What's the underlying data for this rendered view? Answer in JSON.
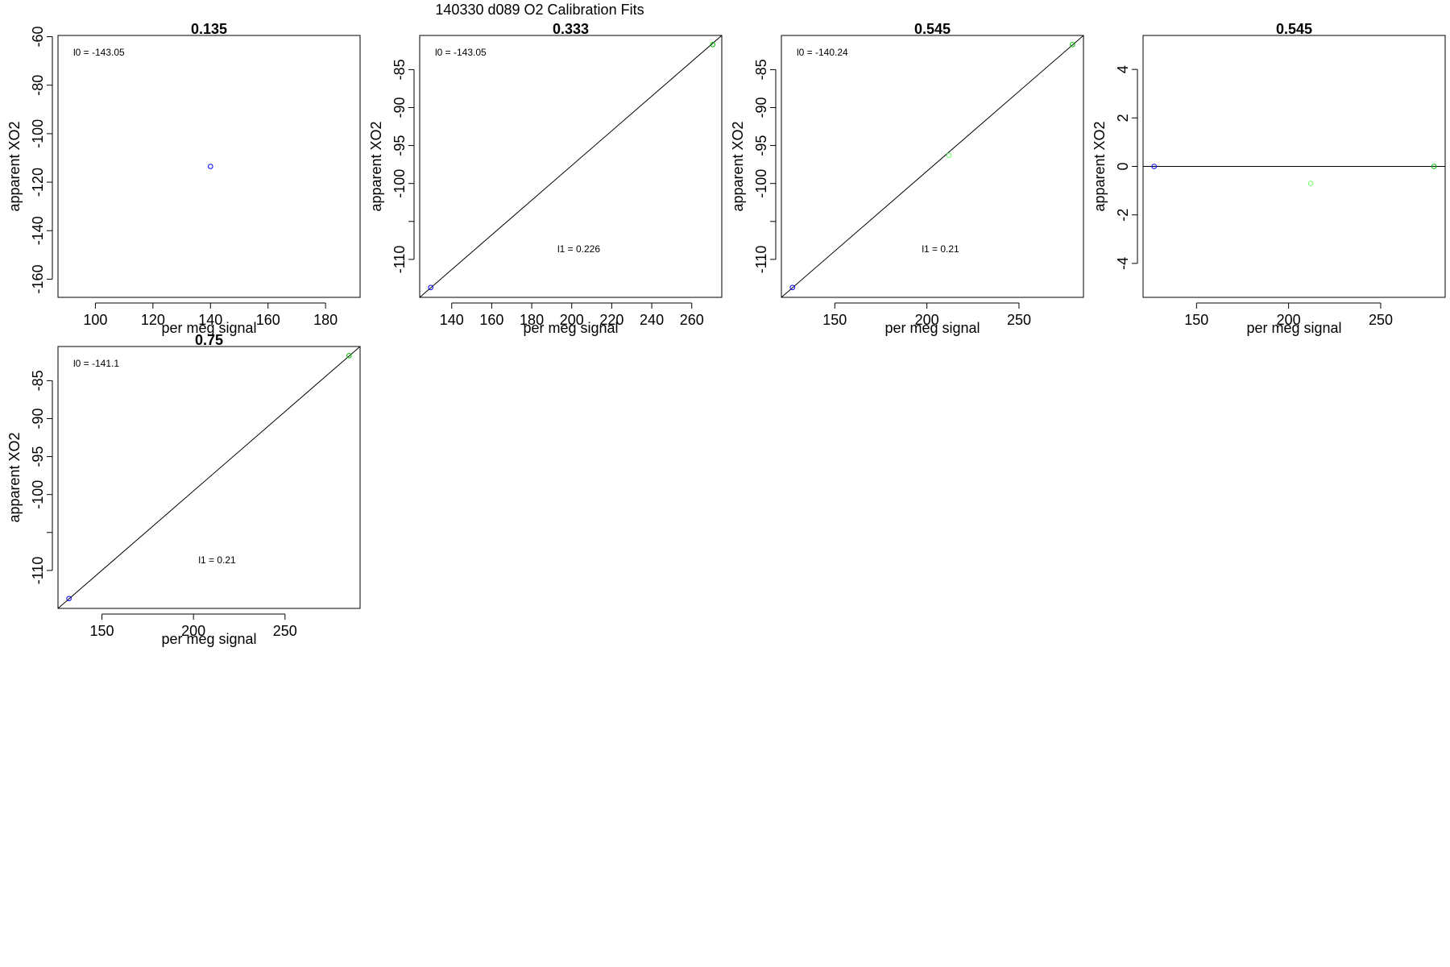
{
  "figure": {
    "title": "140330   d089   O2 Calibration Fits"
  },
  "colors": {
    "blue": "#0000ff",
    "green": "#00c000",
    "lightgreen": "#66ff66",
    "dark": "#000000"
  },
  "chart_data": [
    {
      "type": "scatter",
      "title": "0.135",
      "xlabel": "per meg signal",
      "ylabel": "apparent XO2",
      "xlim": [
        87,
        192
      ],
      "ylim": [
        -167.5,
        -59.5
      ],
      "xticks": [
        "100",
        "120",
        "140",
        "160",
        "180"
      ],
      "yticks": [
        "-60",
        "-80",
        "-100",
        "-120",
        "-140",
        "-160"
      ],
      "points": [
        {
          "x": 140,
          "y": -113.5,
          "color": "blue"
        }
      ],
      "fit_line": null,
      "annotations": {
        "l0": "l0 =  -143.05",
        "l1": ""
      }
    },
    {
      "type": "scatter",
      "title": "0.333",
      "xlabel": "per meg signal",
      "ylabel": "apparent XO2",
      "xlim": [
        124,
        275
      ],
      "ylim": [
        -115,
        -80.5
      ],
      "xticks": [
        "140",
        "160",
        "180",
        "200",
        "220",
        "240",
        "260"
      ],
      "yticks": [
        "-85",
        "-90",
        "-95",
        "-100",
        "",
        "-110"
      ],
      "points": [
        {
          "x": 129.5,
          "y": -113.7,
          "color": "blue"
        },
        {
          "x": 270.5,
          "y": -81.7,
          "color": "green"
        }
      ],
      "fit_line": [
        [
          124,
          -115
        ],
        [
          275,
          -80.5
        ]
      ],
      "annotations": {
        "l0": "l0 =  -143.05",
        "l1": "l1 =  0.226"
      }
    },
    {
      "type": "scatter",
      "title": "0.545",
      "xlabel": "per meg signal",
      "ylabel": "apparent XO2",
      "xlim": [
        121,
        285
      ],
      "ylim": [
        -115,
        -80.5
      ],
      "xticks": [
        "150",
        "200",
        "250"
      ],
      "yticks": [
        "-85",
        "-90",
        "-95",
        "-100",
        "",
        "-110"
      ],
      "points": [
        {
          "x": 127,
          "y": -113.7,
          "color": "blue"
        },
        {
          "x": 212,
          "y": -96.3,
          "color": "lightgreen"
        },
        {
          "x": 279,
          "y": -81.7,
          "color": "green"
        }
      ],
      "fit_line": [
        [
          121,
          -115
        ],
        [
          285,
          -80.5
        ]
      ],
      "annotations": {
        "l0": "l0 =  -140.24",
        "l1": "l1 =  0.21"
      }
    },
    {
      "type": "scatter",
      "title": "0.545",
      "xlabel": "per meg signal",
      "ylabel": "apparent XO2",
      "xlim": [
        121,
        285
      ],
      "ylim": [
        -5.4,
        5.4
      ],
      "xticks": [
        "150",
        "200",
        "250"
      ],
      "yticks": [
        "4",
        "2",
        "0",
        "-2",
        "-4"
      ],
      "points": [
        {
          "x": 127,
          "y": 0,
          "color": "blue"
        },
        {
          "x": 212,
          "y": -0.7,
          "color": "lightgreen"
        },
        {
          "x": 279,
          "y": 0,
          "color": "green"
        }
      ],
      "fit_line": [
        [
          121,
          0
        ],
        [
          285,
          0
        ]
      ],
      "annotations": {
        "l0": "",
        "l1": ""
      }
    },
    {
      "type": "scatter",
      "title": "0.75",
      "xlabel": "per meg signal",
      "ylabel": "apparent XO2",
      "xlim": [
        126,
        291
      ],
      "ylim": [
        -115,
        -80.5
      ],
      "xticks": [
        "150",
        "200",
        "250"
      ],
      "yticks": [
        "-85",
        "-90",
        "-95",
        "-100",
        "",
        "-110"
      ],
      "points": [
        {
          "x": 132,
          "y": -113.7,
          "color": "blue"
        },
        {
          "x": 285,
          "y": -81.7,
          "color": "green"
        }
      ],
      "fit_line": [
        [
          126,
          -115
        ],
        [
          291,
          -80.5
        ]
      ],
      "annotations": {
        "l0": "l0 =  -141.1",
        "l1": "l1 =  0.21"
      }
    }
  ]
}
